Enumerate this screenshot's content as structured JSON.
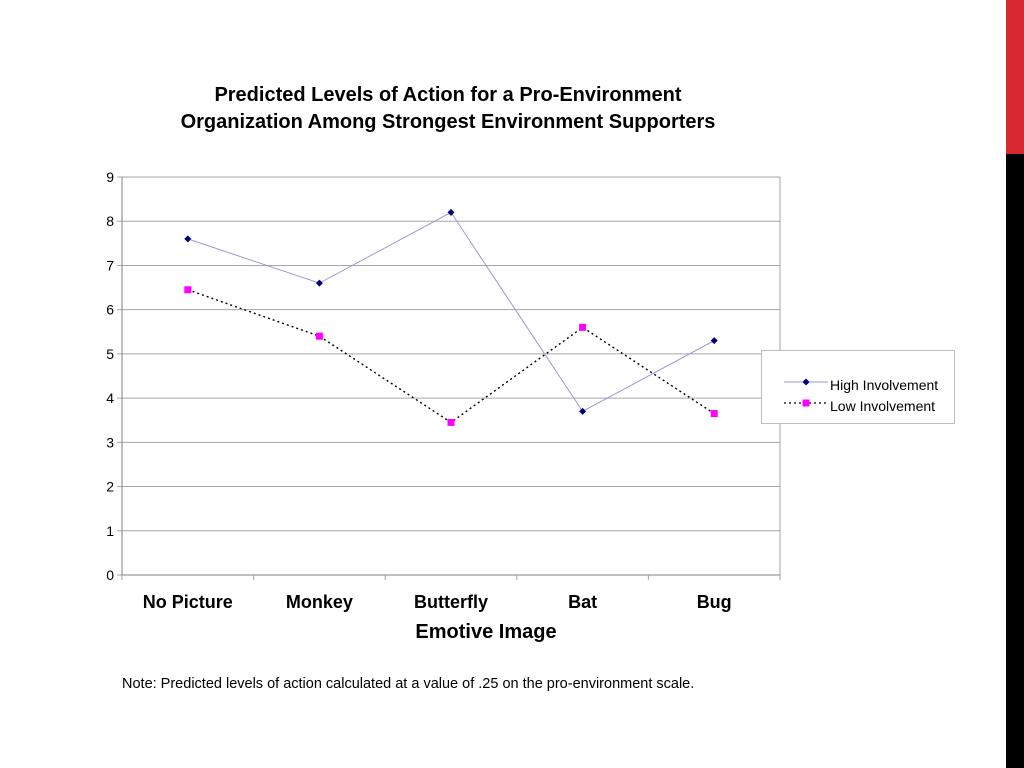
{
  "colors": {
    "accent_red": "#d7282f",
    "accent_black": "#000000",
    "series_high": "#00007a",
    "series_high_line": "#9a9ad6",
    "series_low": "#ff00ff",
    "series_low_line": "#000000",
    "gridline": "#a6a6a6"
  },
  "chart_data": {
    "type": "line",
    "title_lines": [
      "Predicted Levels of Action for a Pro-Environment",
      "Organization Among Strongest Environment Supporters"
    ],
    "xlabel": "Emotive Image",
    "ylabel": "",
    "categories": [
      "No Picture",
      "Monkey",
      "Butterfly",
      "Bat",
      "Bug"
    ],
    "ylim": [
      0,
      9
    ],
    "yticks": [
      "0",
      "1",
      "2",
      "3",
      "4",
      "5",
      "6",
      "7",
      "8",
      "9"
    ],
    "grid": true,
    "legend_position": "right",
    "series": [
      {
        "name": "High Involvement",
        "values": [
          7.6,
          6.6,
          8.2,
          3.7,
          5.3
        ],
        "marker": "diamond",
        "line_style": "solid"
      },
      {
        "name": "Low Involvement",
        "values": [
          6.45,
          5.4,
          3.45,
          5.6,
          3.65
        ],
        "marker": "square",
        "line_style": "dotted"
      }
    ]
  },
  "note": "Note: Predicted levels of action calculated at a value of .25 on the pro-environment scale."
}
